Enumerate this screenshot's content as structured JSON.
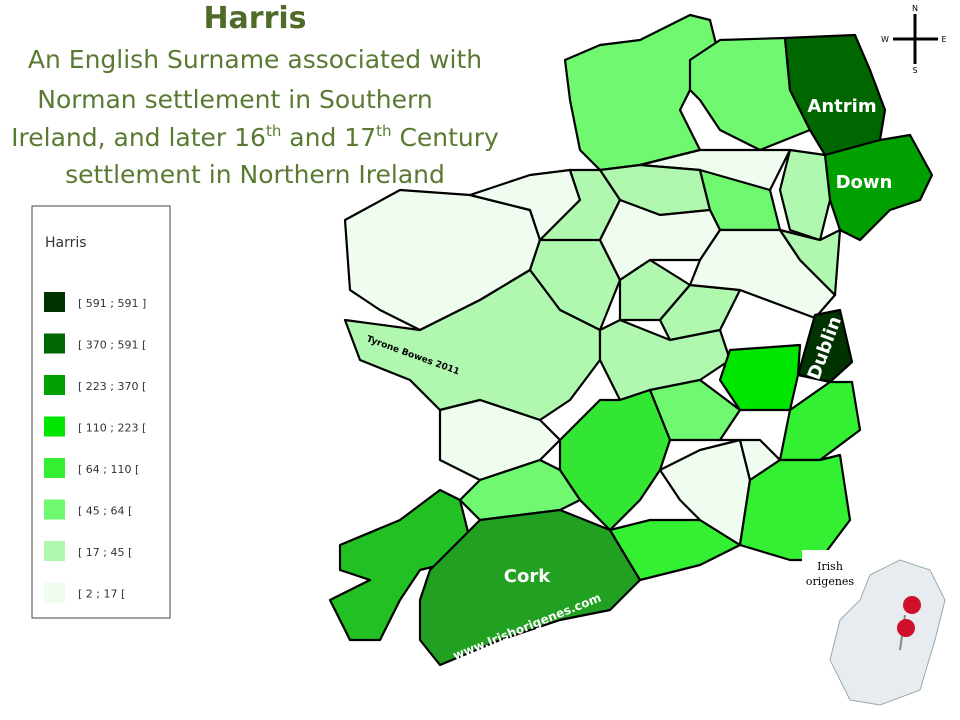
{
  "header": {
    "title": "Harris",
    "subtitle": {
      "line1": "An English Surname associated with",
      "line2": "Norman settlement in Southern",
      "line3": [
        "Ireland, and later 16",
        "th",
        " and 17",
        "th",
        " Century"
      ],
      "line4": "settlement in Northern Ireland"
    }
  },
  "legend": {
    "title": "Harris",
    "items": [
      {
        "label": "[ 591 ; 591 ]",
        "color": "#003300"
      },
      {
        "label": "[ 370 ; 591 [",
        "color": "#006600"
      },
      {
        "label": "[ 223 ; 370 [",
        "color": "#00a000"
      },
      {
        "label": "[ 110 ; 223 [",
        "color": "#00e600"
      },
      {
        "label": "[ 64 ; 110 [",
        "color": "#33f033"
      },
      {
        "label": "[ 45 ; 64 [",
        "color": "#70f870"
      },
      {
        "label": "[ 17 ; 45 [",
        "color": "#b0f8b0"
      },
      {
        "label": "[ 2 ; 17 [",
        "color": "#effcef"
      }
    ]
  },
  "map": {
    "labels": {
      "antrim": "Antrim",
      "down": "Down",
      "dublin": "Dublin",
      "cork": "Cork"
    },
    "credit": "Tyrone Bowes 2011",
    "website": "www.Irishorigenes.com",
    "compass": {
      "n": "N",
      "w": "W",
      "e": "E",
      "s": "S"
    }
  },
  "logo": {
    "line1": "Irish",
    "line2": "origenes"
  }
}
